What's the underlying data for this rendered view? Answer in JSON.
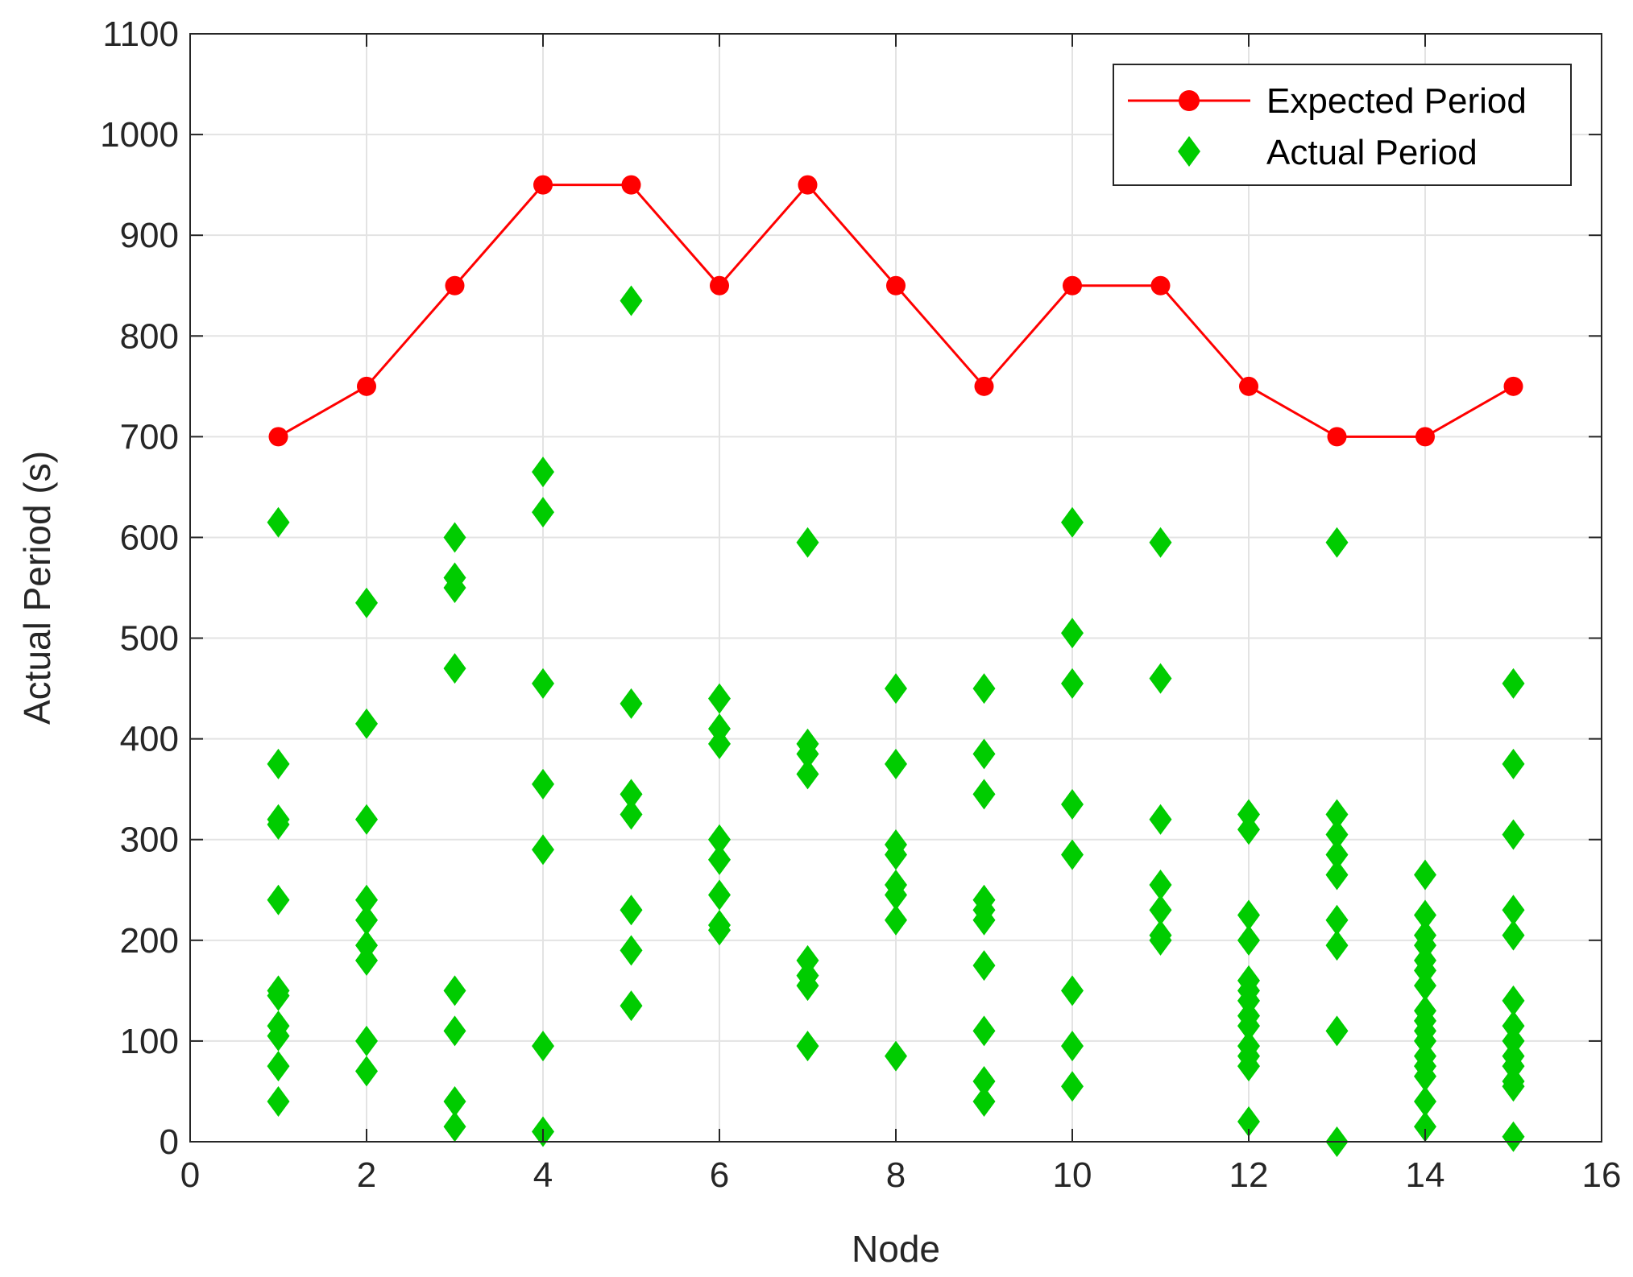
{
  "chart_data": {
    "type": "scatter",
    "xlabel": "Node",
    "ylabel": "Actual Period (s)",
    "xlim": [
      0,
      16
    ],
    "ylim": [
      0,
      1100
    ],
    "xticks": [
      0,
      2,
      4,
      6,
      8,
      10,
      12,
      14,
      16
    ],
    "yticks": [
      0,
      100,
      200,
      300,
      400,
      500,
      600,
      700,
      800,
      900,
      1000,
      1100
    ],
    "grid": true,
    "legend_position": "top-right",
    "series": [
      {
        "name": "Expected Period",
        "kind": "line-marker",
        "color": "#ff0000",
        "marker": "circle",
        "x": [
          1,
          2,
          3,
          4,
          5,
          6,
          7,
          8,
          9,
          10,
          11,
          12,
          13,
          14,
          15
        ],
        "y": [
          700,
          750,
          850,
          950,
          950,
          850,
          950,
          850,
          750,
          850,
          850,
          750,
          700,
          700,
          750
        ]
      },
      {
        "name": "Actual Period",
        "kind": "scatter",
        "color": "#00cc00",
        "marker": "diamond",
        "points": [
          [
            1,
            615
          ],
          [
            1,
            375
          ],
          [
            1,
            320
          ],
          [
            1,
            315
          ],
          [
            1,
            240
          ],
          [
            1,
            150
          ],
          [
            1,
            145
          ],
          [
            1,
            115
          ],
          [
            1,
            105
          ],
          [
            1,
            75
          ],
          [
            1,
            40
          ],
          [
            2,
            535
          ],
          [
            2,
            415
          ],
          [
            2,
            320
          ],
          [
            2,
            240
          ],
          [
            2,
            220
          ],
          [
            2,
            195
          ],
          [
            2,
            180
          ],
          [
            2,
            100
          ],
          [
            2,
            70
          ],
          [
            3,
            600
          ],
          [
            3,
            560
          ],
          [
            3,
            550
          ],
          [
            3,
            470
          ],
          [
            3,
            150
          ],
          [
            3,
            110
          ],
          [
            3,
            40
          ],
          [
            3,
            15
          ],
          [
            4,
            665
          ],
          [
            4,
            625
          ],
          [
            4,
            455
          ],
          [
            4,
            355
          ],
          [
            4,
            290
          ],
          [
            4,
            95
          ],
          [
            4,
            10
          ],
          [
            5,
            835
          ],
          [
            5,
            435
          ],
          [
            5,
            345
          ],
          [
            5,
            325
          ],
          [
            5,
            230
          ],
          [
            5,
            190
          ],
          [
            5,
            135
          ],
          [
            6,
            440
          ],
          [
            6,
            410
          ],
          [
            6,
            395
          ],
          [
            6,
            300
          ],
          [
            6,
            280
          ],
          [
            6,
            245
          ],
          [
            6,
            215
          ],
          [
            6,
            210
          ],
          [
            7,
            595
          ],
          [
            7,
            395
          ],
          [
            7,
            385
          ],
          [
            7,
            365
          ],
          [
            7,
            180
          ],
          [
            7,
            165
          ],
          [
            7,
            155
          ],
          [
            7,
            95
          ],
          [
            8,
            450
          ],
          [
            8,
            375
          ],
          [
            8,
            295
          ],
          [
            8,
            285
          ],
          [
            8,
            255
          ],
          [
            8,
            245
          ],
          [
            8,
            220
          ],
          [
            8,
            85
          ],
          [
            9,
            450
          ],
          [
            9,
            385
          ],
          [
            9,
            345
          ],
          [
            9,
            240
          ],
          [
            9,
            230
          ],
          [
            9,
            220
          ],
          [
            9,
            175
          ],
          [
            9,
            110
          ],
          [
            9,
            60
          ],
          [
            9,
            40
          ],
          [
            10,
            615
          ],
          [
            10,
            505
          ],
          [
            10,
            455
          ],
          [
            10,
            335
          ],
          [
            10,
            285
          ],
          [
            10,
            150
          ],
          [
            10,
            95
          ],
          [
            10,
            55
          ],
          [
            11,
            595
          ],
          [
            11,
            460
          ],
          [
            11,
            320
          ],
          [
            11,
            255
          ],
          [
            11,
            230
          ],
          [
            11,
            205
          ],
          [
            11,
            200
          ],
          [
            12,
            325
          ],
          [
            12,
            310
          ],
          [
            12,
            225
          ],
          [
            12,
            200
          ],
          [
            12,
            160
          ],
          [
            12,
            150
          ],
          [
            12,
            140
          ],
          [
            12,
            125
          ],
          [
            12,
            115
          ],
          [
            12,
            95
          ],
          [
            12,
            85
          ],
          [
            12,
            75
          ],
          [
            12,
            20
          ],
          [
            13,
            595
          ],
          [
            13,
            325
          ],
          [
            13,
            305
          ],
          [
            13,
            285
          ],
          [
            13,
            265
          ],
          [
            13,
            220
          ],
          [
            13,
            195
          ],
          [
            13,
            110
          ],
          [
            13,
            0
          ],
          [
            14,
            265
          ],
          [
            14,
            225
          ],
          [
            14,
            205
          ],
          [
            14,
            195
          ],
          [
            14,
            180
          ],
          [
            14,
            170
          ],
          [
            14,
            155
          ],
          [
            14,
            130
          ],
          [
            14,
            120
          ],
          [
            14,
            110
          ],
          [
            14,
            100
          ],
          [
            14,
            85
          ],
          [
            14,
            75
          ],
          [
            14,
            65
          ],
          [
            14,
            40
          ],
          [
            14,
            15
          ],
          [
            15,
            455
          ],
          [
            15,
            375
          ],
          [
            15,
            305
          ],
          [
            15,
            230
          ],
          [
            15,
            205
          ],
          [
            15,
            140
          ],
          [
            15,
            115
          ],
          [
            15,
            100
          ],
          [
            15,
            85
          ],
          [
            15,
            75
          ],
          [
            15,
            60
          ],
          [
            15,
            55
          ],
          [
            15,
            5
          ]
        ]
      }
    ]
  }
}
